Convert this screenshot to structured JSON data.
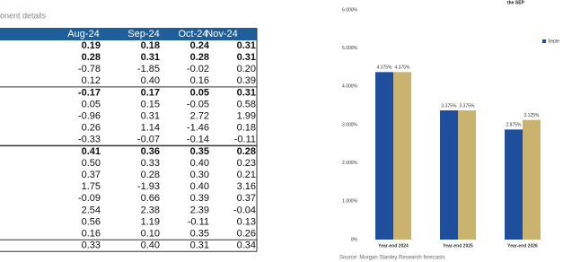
{
  "table": {
    "title": "onent details",
    "columns": [
      "Aug-24",
      "Sep-24",
      "Oct-24",
      "Nov-24"
    ],
    "rows": [
      [
        "0.19",
        "0.18",
        "0.24",
        "0.31"
      ],
      [
        "0.28",
        "0.31",
        "0.28",
        "0.31"
      ],
      [
        "-0.78",
        "-1.85",
        "-0.02",
        "0.20"
      ],
      [
        "0.12",
        "0.40",
        "0.16",
        "0.39"
      ],
      [
        "-0.17",
        "0.17",
        "0.05",
        "0.31"
      ],
      [
        "0.05",
        "0.15",
        "-0.05",
        "0.58"
      ],
      [
        "-0.96",
        "0.31",
        "2.72",
        "1.99"
      ],
      [
        "0.26",
        "1.14",
        "-1.46",
        "0.18"
      ],
      [
        "-0.33",
        "-0.07",
        "-0.14",
        "-0.11"
      ],
      [
        "0.41",
        "0.36",
        "0.35",
        "0.28"
      ],
      [
        "0.50",
        "0.33",
        "0.40",
        "0.23"
      ],
      [
        "0.37",
        "0.28",
        "0.30",
        "0.21"
      ],
      [
        "1.75",
        "-1.93",
        "0.40",
        "3.16"
      ],
      [
        "-0.09",
        "0.66",
        "0.39",
        "0.37"
      ],
      [
        "2.54",
        "2.38",
        "2.39",
        "-0.04"
      ],
      [
        "0.56",
        "1.19",
        "-0.11",
        "0.13"
      ],
      [
        "0.16",
        "0.10",
        "0.35",
        "0.26"
      ],
      [
        "0.33",
        "0.40",
        "0.31",
        "0.34"
      ]
    ]
  },
  "chart_data": {
    "type": "bar",
    "title": "the SEP",
    "categories": [
      "Year-end 2024",
      "Year-end 2025",
      "Year-end 2026"
    ],
    "series": [
      {
        "name": "Septe",
        "color": "#1f4e9c",
        "values": [
          4.375,
          3.375,
          2.875
        ],
        "value_labels": [
          "4.375%",
          "3.375%",
          "2.875%"
        ]
      },
      {
        "color": "#c9b36f",
        "values": [
          4.375,
          3.375,
          3.125
        ],
        "value_labels": [
          "4.375%",
          "3.375%",
          "3.125%"
        ]
      }
    ],
    "ylim": [
      0,
      6
    ],
    "yticks": [
      {
        "value": 0,
        "label": "0%"
      },
      {
        "value": 1,
        "label": "1.000%"
      },
      {
        "value": 2,
        "label": "2.000%"
      },
      {
        "value": 3,
        "label": "3.000%"
      },
      {
        "value": 4,
        "label": "4.000%"
      },
      {
        "value": 5,
        "label": "5.000%"
      },
      {
        "value": 6,
        "label": "6.000%"
      }
    ],
    "source": "Source: Morgan Stanley Research forecasts"
  }
}
